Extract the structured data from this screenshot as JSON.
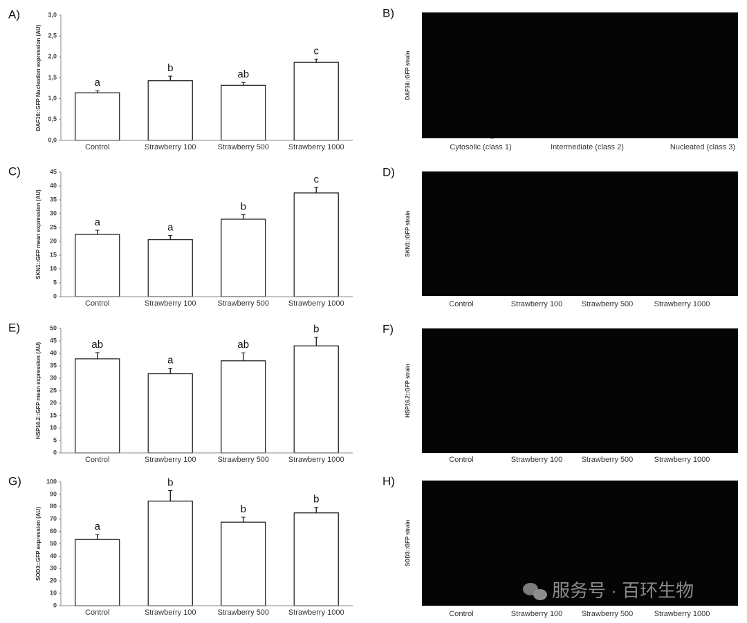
{
  "chart_data": [
    {
      "type": "bar",
      "panel": "A)",
      "y_label": "DAF16::GFP Nucleation expression (AU)",
      "categories": [
        "Control",
        "Strawberry 100",
        "Strawberry 500",
        "Strawberry 1000"
      ],
      "values": [
        1.14,
        1.43,
        1.32,
        1.87
      ],
      "errors": [
        0.05,
        0.11,
        0.07,
        0.08
      ],
      "annotations": [
        "a",
        "b",
        "ab",
        "c"
      ],
      "color": "#ffffff",
      "ylim": [
        0,
        3
      ],
      "yticks": [
        {
          "value": 0,
          "label": "0,0"
        },
        {
          "value": 0.5,
          "label": "0,5"
        },
        {
          "value": 1,
          "label": "1,0"
        },
        {
          "value": 1.5,
          "label": "1,5"
        },
        {
          "value": 2,
          "label": "2,0"
        },
        {
          "value": 2.5,
          "label": "2,5"
        },
        {
          "value": 3,
          "label": "3,0"
        }
      ]
    },
    {
      "type": "bar",
      "panel": "C)",
      "y_label": "SKN1::GFP mean expression (AU)",
      "categories": [
        "Control",
        "Strawberry 100",
        "Strawberry 500",
        "Strawberry 1000"
      ],
      "values": [
        22.5,
        20.6,
        28,
        37.5
      ],
      "errors": [
        1.5,
        1.5,
        1.6,
        2
      ],
      "annotations": [
        "a",
        "a",
        "b",
        "c"
      ],
      "color": "#ffffff",
      "ylim": [
        0,
        45
      ],
      "yticks": [
        0,
        5,
        10,
        15,
        20,
        25,
        30,
        35,
        40,
        45
      ]
    },
    {
      "type": "bar",
      "panel": "E)",
      "y_label": "HSP16.2::GFP mean expression (AU)",
      "categories": [
        "Control",
        "Strawberry 100",
        "Strawberry 500",
        "Strawberry 1000"
      ],
      "values": [
        37.8,
        31.8,
        37,
        43
      ],
      "errors": [
        2.5,
        2.2,
        3.2,
        3.5
      ],
      "annotations": [
        "ab",
        "a",
        "ab",
        "b"
      ],
      "color": "#ffffff",
      "ylim": [
        0,
        50
      ],
      "yticks": [
        0,
        5,
        10,
        15,
        20,
        25,
        30,
        35,
        40,
        45,
        50
      ]
    },
    {
      "type": "bar",
      "panel": "G)",
      "y_label": "SOD3::GFP expression (AU)",
      "categories": [
        "Control",
        "Strawberry 100",
        "Strawberry 500",
        "Strawberry 1000"
      ],
      "values": [
        53.5,
        84.5,
        67.5,
        75
      ],
      "errors": [
        4,
        8.5,
        4,
        4.5
      ],
      "annotations": [
        "a",
        "b",
        "b",
        "b"
      ],
      "color": "#ffffff",
      "ylim": [
        0,
        100
      ],
      "yticks": [
        0,
        10,
        20,
        30,
        40,
        50,
        60,
        70,
        80,
        90,
        100
      ]
    }
  ],
  "micrographs": [
    {
      "panel": "B)",
      "y_label": "DAF16::GFP strain",
      "captions": [
        "Cytosolic  (class 1)",
        "Intermediate (class 2)",
        "Nucleated (class 3)"
      ]
    },
    {
      "panel": "D)",
      "y_label": "SKN1::GFP strain",
      "captions": [
        "Control",
        "Strawberry 100",
        "Strawberry 500",
        "Strawberry 1000"
      ]
    },
    {
      "panel": "F)",
      "y_label": "HSP16.2::GFP strain",
      "captions": [
        "Control",
        "Strawberry 100",
        "Strawberry 500",
        "Strawberry 1000"
      ]
    },
    {
      "panel": "H)",
      "y_label": "SOD3::GFP strain",
      "captions": [
        "Control",
        "Strawberry 100",
        "Strawberry 500",
        "Strawberry 1000"
      ]
    }
  ],
  "watermark": "服务号 · 百环生物"
}
